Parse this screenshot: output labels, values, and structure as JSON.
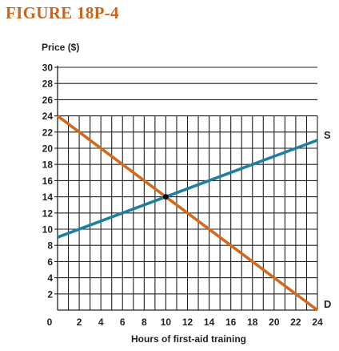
{
  "figure_label": "FIGURE 18P-4",
  "colors": {
    "title": "#c8641e",
    "demand": "#d2691e",
    "supply": "#1f7fa0",
    "grid": "#231f20",
    "equilibrium": "#000000"
  },
  "chart_data": {
    "type": "line",
    "title": "",
    "xlabel": "Hours of first-aid training",
    "ylabel": "Price ($)",
    "xlim": [
      0,
      24
    ],
    "ylim": [
      0,
      30
    ],
    "x_ticks": [
      0,
      2,
      4,
      6,
      8,
      10,
      12,
      14,
      16,
      18,
      20,
      22,
      24
    ],
    "y_ticks": [
      2,
      4,
      6,
      8,
      10,
      12,
      14,
      16,
      18,
      20,
      22,
      24,
      26,
      28,
      30
    ],
    "grid": true,
    "series": [
      {
        "name": "D",
        "color_key": "demand",
        "points": [
          [
            0,
            24
          ],
          [
            24,
            0
          ]
        ]
      },
      {
        "name": "S",
        "color_key": "supply",
        "points": [
          [
            0,
            9
          ],
          [
            24,
            21
          ]
        ]
      }
    ],
    "equilibrium": {
      "x": 10,
      "y": 14
    }
  }
}
